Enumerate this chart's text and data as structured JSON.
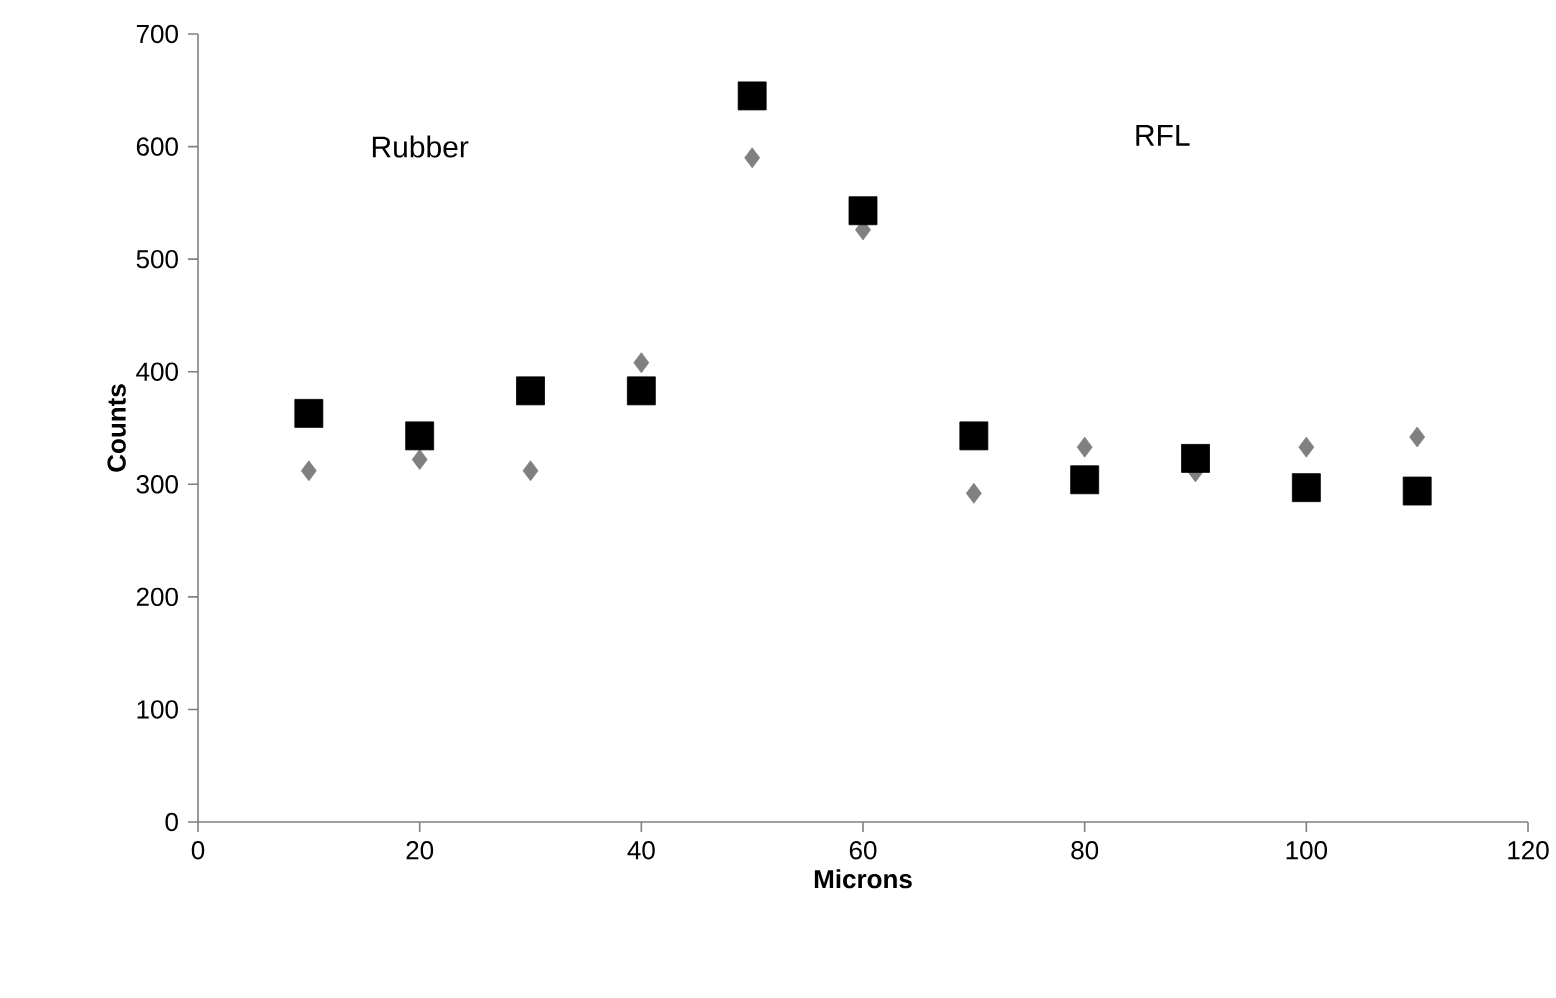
{
  "chart_data": {
    "type": "scatter",
    "xlabel": "Microns",
    "ylabel": "Counts",
    "x": [
      10,
      20,
      30,
      40,
      50,
      60,
      70,
      80,
      90,
      100,
      110
    ],
    "series": [
      {
        "color": "#808080",
        "marker": "diamond",
        "values": [
          312,
          322,
          312,
          408,
          590,
          526,
          292,
          333,
          311,
          333,
          342
        ]
      },
      {
        "color": "#000000",
        "marker": "square",
        "values": [
          363,
          343,
          383,
          383,
          645,
          543,
          343,
          304,
          323,
          297,
          294
        ]
      }
    ],
    "annotations": [
      "Rubber",
      "RFL"
    ],
    "xlim": [
      0,
      120
    ],
    "xticks": [
      0,
      20,
      40,
      60,
      80,
      100,
      120
    ],
    "ylim": [
      0,
      700
    ],
    "yticks": [
      0,
      100,
      200,
      300,
      400,
      500,
      600,
      700
    ],
    "grid": false
  }
}
